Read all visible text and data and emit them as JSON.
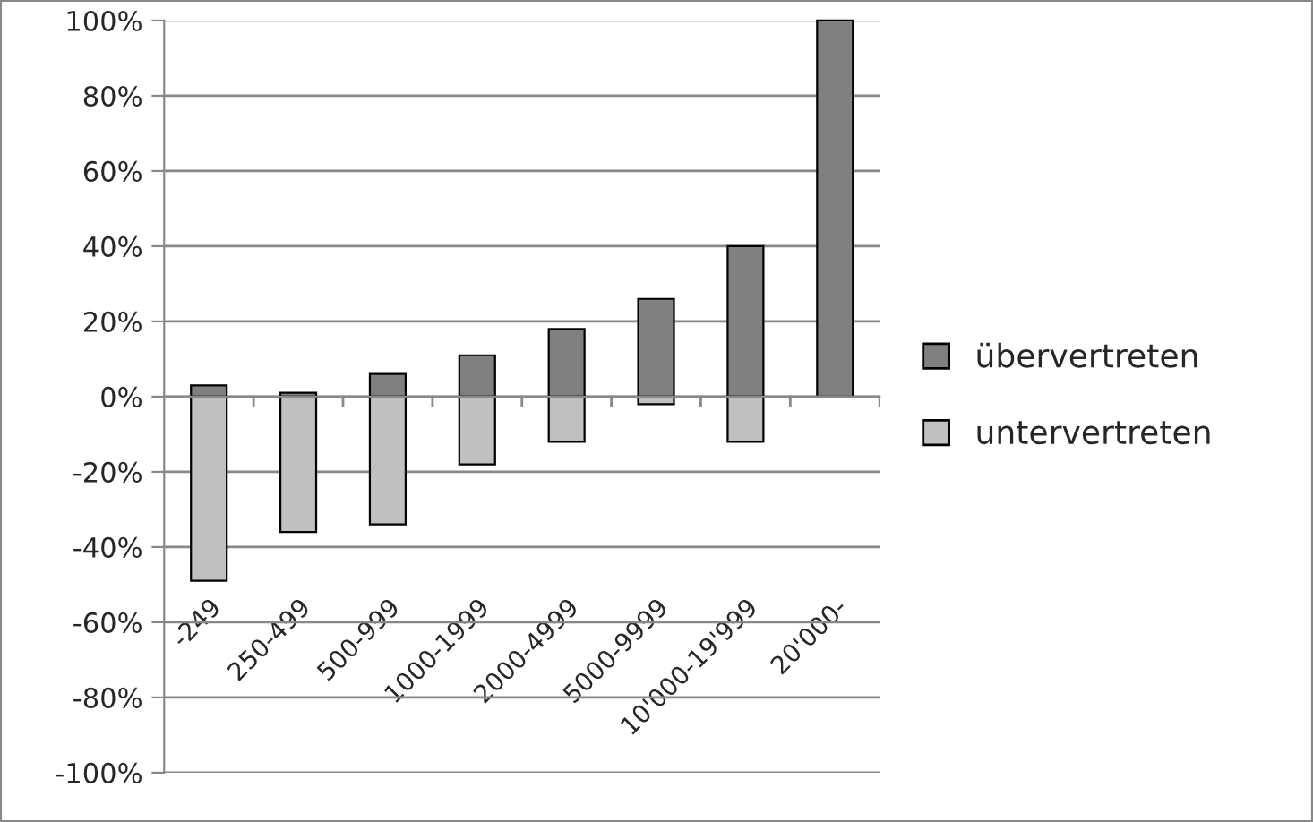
{
  "chart_data": {
    "type": "bar",
    "stacked": true,
    "categories": [
      "-249",
      "250-499",
      "500-999",
      "1000-1999",
      "2000-4999",
      "5000-9999",
      "10'000-19'999",
      "20'000-"
    ],
    "series": [
      {
        "name": "übervertreten",
        "color": "#808080",
        "values": [
          3,
          1,
          6,
          11,
          18,
          26,
          40,
          100
        ]
      },
      {
        "name": "untervertreten",
        "color": "#c0c0c0",
        "values": [
          -49,
          -36,
          -34,
          -18,
          -12,
          -2,
          -12,
          null
        ]
      }
    ],
    "ylim": [
      -100,
      100
    ],
    "yticks": [
      {
        "value": -100,
        "label": "-100%"
      },
      {
        "value": -80,
        "label": "-80%"
      },
      {
        "value": -60,
        "label": "-60%"
      },
      {
        "value": -40,
        "label": "-40%"
      },
      {
        "value": -20,
        "label": "-20%"
      },
      {
        "value": 0,
        "label": "0%"
      },
      {
        "value": 20,
        "label": "20%"
      },
      {
        "value": 40,
        "label": "40%"
      },
      {
        "value": 60,
        "label": "60%"
      },
      {
        "value": 80,
        "label": "80%"
      },
      {
        "value": 100,
        "label": "100%"
      }
    ],
    "grid": "y",
    "legend": "right"
  }
}
